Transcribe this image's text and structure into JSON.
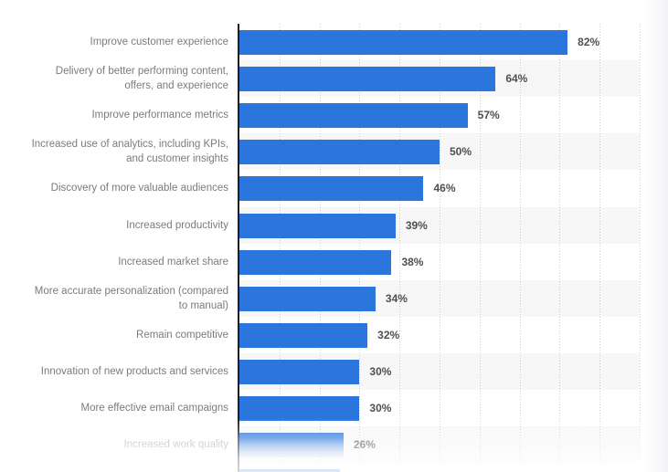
{
  "chart_data": {
    "type": "bar",
    "orientation": "horizontal",
    "title": "",
    "xlabel": "",
    "ylabel": "",
    "unit": "%",
    "xlim": [
      0,
      100
    ],
    "gridline_step": 10,
    "grid_style": "dotted-vertical",
    "legend": "none",
    "categories": [
      "Improve customer experience",
      "Delivery of better performing content,\noffers, and experience",
      "Improve performance metrics",
      "Increased use of analytics, including KPIs,\nand customer insights",
      "Discovery of more valuable audiences",
      "Increased productivity",
      "Increased market share",
      "More accurate personalization (compared\nto manual)",
      "Remain competitive",
      "Innovation of new products and services",
      "More effective email campaigns",
      "Increased work quality"
    ],
    "values": [
      82,
      64,
      57,
      50,
      46,
      39,
      38,
      34,
      32,
      30,
      30,
      26
    ],
    "last_row_faded": true,
    "next_bar_preview_visible": true,
    "next_bar_preview_percent": 25
  },
  "colors": {
    "bar": "#2a76dd",
    "row_band": "#f7f7f7",
    "axis_line": "#1d1d1d",
    "gridline": "#cfcfcf",
    "category_label": "#7b7b7b",
    "category_label_faded": "#ababab",
    "value_label": "#4f4f4f"
  }
}
